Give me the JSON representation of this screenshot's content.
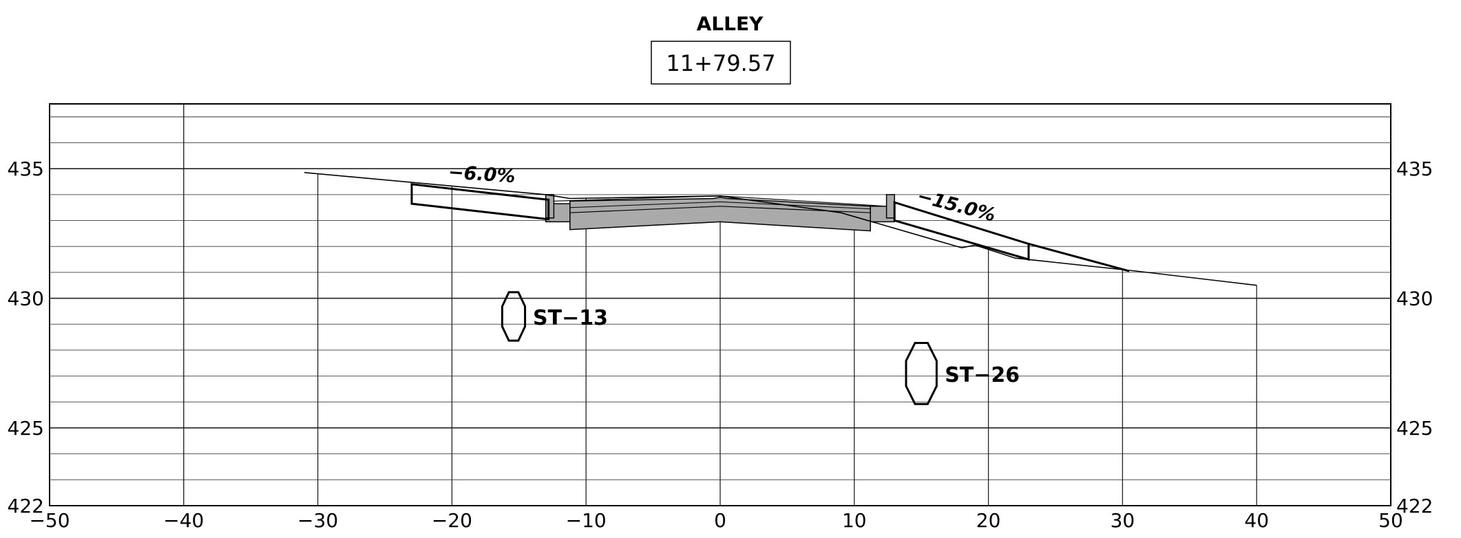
{
  "title": "ALLEY",
  "station": "11+79.57",
  "chart_data": {
    "type": "cross-section",
    "x_ticks": [
      "−50",
      "−40",
      "−30",
      "−20",
      "−10",
      "0",
      "10",
      "20",
      "30",
      "40",
      "50"
    ],
    "y_ticks_left": [
      "435",
      "430",
      "425",
      "422"
    ],
    "y_ticks_right": [
      "435",
      "430",
      "425",
      "422"
    ],
    "xlim": [
      -50,
      50
    ],
    "ylim": [
      422,
      437.5
    ],
    "existing_ground": [
      [
        -31,
        434.85
      ],
      [
        -13,
        434.0
      ],
      [
        -11.2,
        433.85
      ],
      [
        0,
        433.95
      ],
      [
        9,
        433.3
      ],
      [
        16,
        432.25
      ],
      [
        18,
        431.95
      ],
      [
        19,
        432.05
      ],
      [
        22,
        431.55
      ],
      [
        31,
        431.05
      ],
      [
        40,
        430.5
      ]
    ],
    "proposed_surface": [
      [
        -23,
        434.4
      ],
      [
        -12.8,
        433.75
      ],
      [
        -12.8,
        434.0
      ],
      [
        -12.2,
        434.0
      ],
      [
        -12.2,
        433.5
      ],
      [
        0,
        433.75
      ],
      [
        12.2,
        433.5
      ],
      [
        12.2,
        434.0
      ],
      [
        12.8,
        434.0
      ],
      [
        13,
        433.7
      ],
      [
        23,
        432.05
      ],
      [
        30.5,
        431.05
      ]
    ],
    "slopes": [
      {
        "label": "−6.0%",
        "x": -17.8,
        "y": 434.55,
        "angle": 3.7
      },
      {
        "label": "−15.0%",
        "x": 17.5,
        "y": 433.35,
        "angle": 14.5
      }
    ],
    "borings": [
      {
        "label": "ST−13",
        "x": -15.4,
        "y": 429.3
      },
      {
        "label": "ST−26",
        "x": 15.0,
        "y": 427.1
      }
    ],
    "grid_ordinates": [
      -30,
      -20,
      -10,
      0,
      10,
      20,
      30,
      40
    ]
  }
}
